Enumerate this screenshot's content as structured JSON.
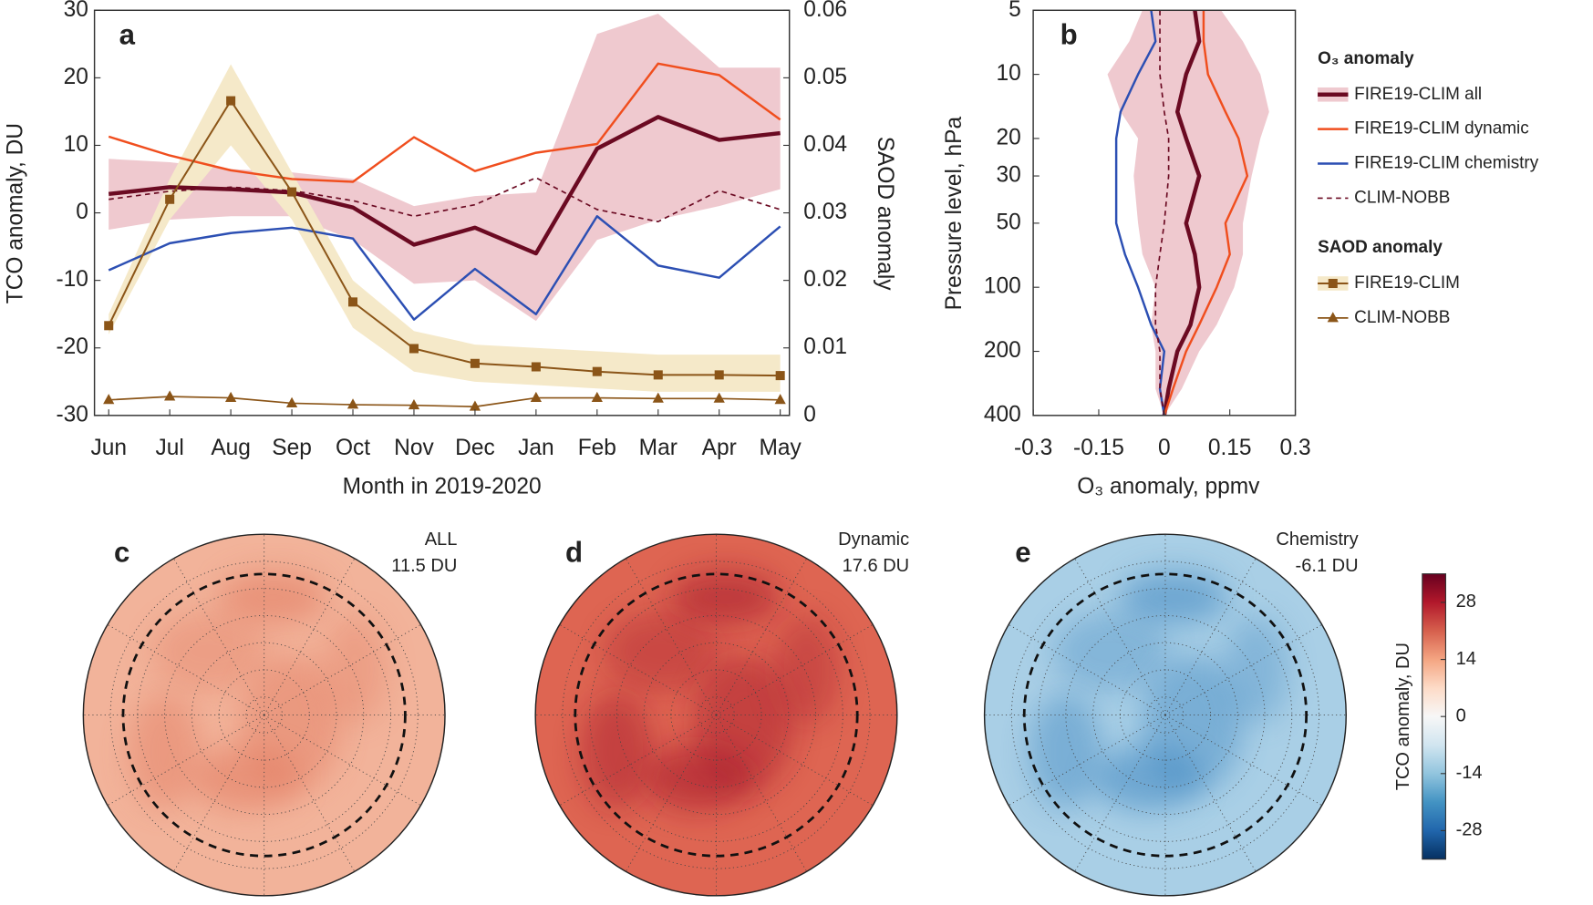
{
  "chart_data": [
    {
      "type": "line",
      "label": "a",
      "categories": [
        "Jun",
        "Jul",
        "Aug",
        "Sep",
        "Oct",
        "Nov",
        "Dec",
        "Jan",
        "Feb",
        "Mar",
        "Apr",
        "May"
      ],
      "xlabel": "Month in 2019-2020",
      "ylabel": "TCO anomaly, DU",
      "y2label": "SAOD anomaly",
      "ylim": [
        -30,
        30
      ],
      "yticks": [
        -30,
        -20,
        -10,
        0,
        10,
        20,
        30
      ],
      "y2lim": [
        0,
        0.06
      ],
      "y2ticks": [
        0,
        0.01,
        0.02,
        0.03,
        0.04,
        0.05,
        0.06
      ],
      "legend_titles": [
        "O₃ anomaly",
        "SAOD anomaly"
      ],
      "series": [
        {
          "name": "FIRE19-CLIM all",
          "color": "#6b0a22",
          "width": 4,
          "dash": "none",
          "band_color": "#efc9cf",
          "values": [
            2.8,
            3.8,
            3.5,
            3.0,
            0.8,
            -4.7,
            -2.2,
            -6.0,
            9.5,
            14.2,
            10.8,
            11.8
          ],
          "upper": [
            8,
            7.5,
            6.5,
            6,
            5,
            1,
            2.5,
            3,
            26.5,
            29.5,
            21.5,
            21.5
          ],
          "lower": [
            -2.5,
            -1,
            -0.5,
            -0.5,
            -4,
            -10.5,
            -10,
            -16,
            -4,
            -1,
            1,
            3.5
          ]
        },
        {
          "name": "FIRE19-CLIM dynamic",
          "color": "#f04e1e",
          "width": 2.2,
          "dash": "none",
          "values": [
            11.3,
            8.5,
            6.3,
            5.0,
            4.6,
            11.2,
            6.2,
            8.9,
            10.2,
            22.1,
            20.4,
            13.8
          ]
        },
        {
          "name": "FIRE19-CLIM chemistry",
          "color": "#2c4fb3",
          "width": 2.2,
          "dash": "none",
          "values": [
            -8.5,
            -4.5,
            -3.0,
            -2.2,
            -3.8,
            -15.8,
            -8.3,
            -15.0,
            -0.5,
            -7.8,
            -9.6,
            -2.0
          ]
        },
        {
          "name": "CLIM-NOBB",
          "color": "#6b0a22",
          "width": 1.5,
          "dash": "5,4",
          "values": [
            2.0,
            3.2,
            3.8,
            3.3,
            1.8,
            -0.5,
            1.2,
            5.2,
            0.5,
            -1.3,
            3.3,
            0.5
          ]
        },
        {
          "name": "FIRE19-CLIM",
          "color": "#8b5518",
          "width": 1.8,
          "dash": "none",
          "marker": "square",
          "axis": "y2",
          "band_color": "#f5e9c9",
          "values": [
            0.0133,
            0.032,
            0.0466,
            0.0331,
            0.0168,
            0.0099,
            0.0077,
            0.0072,
            0.0065,
            0.006,
            0.006,
            0.0059
          ],
          "upper": [
            0.015,
            0.035,
            0.052,
            0.036,
            0.02,
            0.0125,
            0.0105,
            0.01,
            0.0095,
            0.009,
            0.009,
            0.009
          ],
          "lower": [
            0.012,
            0.029,
            0.04,
            0.029,
            0.013,
            0.0065,
            0.005,
            0.0045,
            0.004,
            0.0035,
            0.0035,
            0.0035
          ]
        },
        {
          "name": "CLIM-NOBB",
          "color": "#8b5518",
          "width": 1.5,
          "dash": "none",
          "marker": "triangle",
          "axis": "y2",
          "values": [
            0.0023,
            0.0028,
            0.0026,
            0.0018,
            0.0016,
            0.0015,
            0.0013,
            0.0026,
            0.0026,
            0.0025,
            0.0025,
            0.0023
          ]
        }
      ]
    },
    {
      "type": "line",
      "value_axis": "x",
      "label": "b",
      "xlabel": "O₃ anomaly, ppmv",
      "ylabel": "Pressure level, hPa",
      "xlim": [
        -0.3,
        0.3
      ],
      "xticks": [
        -0.3,
        -0.15,
        0,
        0.15,
        0.3
      ],
      "ylim": [
        400,
        5
      ],
      "yticks": [
        5,
        10,
        20,
        30,
        50,
        100,
        200,
        400
      ],
      "log_y": true,
      "levels": [
        400,
        300,
        200,
        150,
        100,
        70,
        50,
        30,
        20,
        15,
        10,
        7,
        5
      ],
      "series": [
        {
          "color": "#6b0a22",
          "width": 4,
          "dash": "none",
          "band_color": "#efc9cf",
          "values": [
            0.0,
            0.01,
            0.03,
            0.06,
            0.08,
            0.07,
            0.05,
            0.08,
            0.05,
            0.03,
            0.05,
            0.08,
            0.07
          ],
          "upper": [
            0,
            0.04,
            0.08,
            0.12,
            0.16,
            0.18,
            0.18,
            0.2,
            0.22,
            0.24,
            0.22,
            0.18,
            0.13
          ],
          "lower": [
            0,
            -0.02,
            -0.02,
            -0.03,
            -0.02,
            -0.05,
            -0.06,
            -0.07,
            -0.06,
            -0.1,
            -0.13,
            -0.08,
            -0.05
          ]
        },
        {
          "color": "#f04e1e",
          "width": 2.2,
          "dash": "none",
          "values": [
            0.0,
            0.02,
            0.05,
            0.08,
            0.12,
            0.15,
            0.14,
            0.19,
            0.17,
            0.14,
            0.1,
            0.09,
            0.09
          ]
        },
        {
          "color": "#2c4fb3",
          "width": 2.2,
          "dash": "none",
          "values": [
            0.0,
            -0.01,
            0.0,
            -0.03,
            -0.06,
            -0.09,
            -0.11,
            -0.11,
            -0.11,
            -0.1,
            -0.06,
            -0.02,
            -0.03
          ]
        },
        {
          "color": "#6b0a22",
          "width": 1.5,
          "dash": "5,4",
          "values": [
            0.0,
            -0.01,
            -0.01,
            -0.02,
            -0.02,
            -0.01,
            0.0,
            0.01,
            0.01,
            0.0,
            -0.01,
            -0.01,
            -0.01
          ]
        }
      ]
    },
    {
      "type": "colorbar",
      "ylabel": "TCO anomaly, DU",
      "ylim": [
        -35,
        35
      ],
      "yticks": [
        -28,
        -14,
        0,
        14,
        28
      ],
      "colors": [
        "#053061",
        "#2166ac",
        "#4393c3",
        "#92c5de",
        "#d1e5f0",
        "#f7f7f7",
        "#fddbc7",
        "#f4a582",
        "#d6604d",
        "#b2182b",
        "#67001f"
      ]
    }
  ],
  "maps": [
    {
      "label": "c",
      "title": "ALL",
      "subtitle": "11.5 DU",
      "color": "#f2b39a",
      "accent_color": "#e27a60"
    },
    {
      "label": "d",
      "title": "Dynamic",
      "subtitle": "17.6 DU",
      "color": "#de6552",
      "accent_color": "#a5132b"
    },
    {
      "label": "e",
      "title": "Chemistry",
      "subtitle": "-6.1 DU",
      "color": "#a9cfe6",
      "accent_color": "#3f87c1"
    }
  ]
}
